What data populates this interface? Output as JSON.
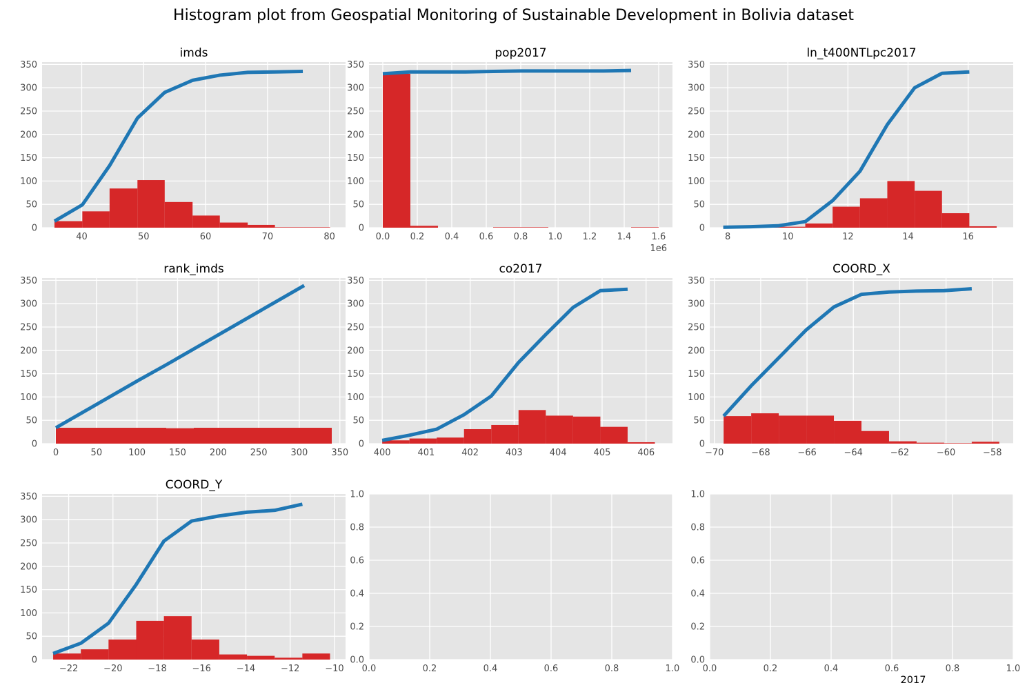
{
  "title": "Histogram plot from Geospatial Monitoring of Sustainable Development in Bolivia dataset",
  "colors": {
    "bar": "#d62728",
    "line": "#1f77b4",
    "panel": "#e5e5e5",
    "grid": "#ffffff",
    "tick_text": "#4d4d4d"
  },
  "chart_data": [
    {
      "type": "bar",
      "title": "imds",
      "grid": true,
      "xlim": [
        33.6,
        82.6
      ],
      "ylim": [
        0,
        355
      ],
      "xticks": [
        40,
        50,
        60,
        70,
        80
      ],
      "xtick_labels": [
        "40",
        "50",
        "60",
        "70",
        "80"
      ],
      "yticks": [
        0,
        50,
        100,
        150,
        200,
        250,
        300,
        350
      ],
      "ytick_labels": [
        "0",
        "50",
        "100",
        "150",
        "200",
        "250",
        "300",
        "350"
      ],
      "bin_edges": [
        35.6,
        40.1,
        44.5,
        49.0,
        53.4,
        57.9,
        62.3,
        66.8,
        71.2,
        75.7,
        80.1
      ],
      "counts": [
        14,
        35,
        84,
        102,
        55,
        26,
        11,
        6,
        1,
        1
      ],
      "cumulative": {
        "x": [
          35.6,
          40.1,
          44.5,
          49.0,
          53.4,
          57.9,
          62.3,
          66.8,
          71.2,
          75.7
        ],
        "y": [
          14,
          49,
          133,
          235,
          290,
          316,
          327,
          333,
          334,
          335
        ]
      }
    },
    {
      "type": "bar",
      "title": "pop2017",
      "grid": true,
      "xlim": [
        -0.08,
        1.68
      ],
      "ylim": [
        0,
        355
      ],
      "xticks": [
        0,
        0.2,
        0.4,
        0.6,
        0.8,
        1.0,
        1.2,
        1.4,
        1.6
      ],
      "xtick_labels": [
        "0.0",
        "0.2",
        "0.4",
        "0.6",
        "0.8",
        "1.0",
        "1.2",
        "1.4",
        "1.6"
      ],
      "x_offset_label": "1e6",
      "yticks": [
        0,
        50,
        100,
        150,
        200,
        250,
        300,
        350
      ],
      "ytick_labels": [
        "0",
        "50",
        "100",
        "150",
        "200",
        "250",
        "300",
        "350"
      ],
      "bin_edges": [
        0,
        0.16,
        0.32,
        0.48,
        0.64,
        0.8,
        0.96,
        1.12,
        1.28,
        1.44,
        1.6
      ],
      "counts": [
        330,
        4,
        0,
        0,
        1,
        1,
        0,
        0,
        0,
        1
      ],
      "cumulative": {
        "x": [
          0,
          0.16,
          0.32,
          0.48,
          0.64,
          0.8,
          0.96,
          1.12,
          1.28,
          1.44
        ],
        "y": [
          330,
          334,
          334,
          334,
          335,
          336,
          336,
          336,
          336,
          337
        ]
      }
    },
    {
      "type": "bar",
      "title": "ln_t400NTLpc2017",
      "grid": true,
      "xlim": [
        7.4,
        17.5
      ],
      "ylim": [
        0,
        355
      ],
      "xticks": [
        8,
        10,
        12,
        14,
        16
      ],
      "xtick_labels": [
        "8",
        "10",
        "12",
        "14",
        "16"
      ],
      "yticks": [
        0,
        50,
        100,
        150,
        200,
        250,
        300,
        350
      ],
      "ytick_labels": [
        "0",
        "50",
        "100",
        "150",
        "200",
        "250",
        "300",
        "350"
      ],
      "bin_edges": [
        7.85,
        8.76,
        9.67,
        10.58,
        11.49,
        12.4,
        13.31,
        14.22,
        15.13,
        16.04,
        16.95
      ],
      "counts": [
        1,
        1,
        2,
        9,
        45,
        63,
        100,
        79,
        31,
        3
      ],
      "cumulative": {
        "x": [
          7.85,
          8.76,
          9.67,
          10.58,
          11.49,
          12.4,
          13.31,
          14.22,
          15.13,
          16.04
        ],
        "y": [
          1,
          2,
          4,
          13,
          58,
          121,
          221,
          300,
          331,
          334
        ]
      }
    },
    {
      "type": "bar",
      "title": "rank_imds",
      "grid": true,
      "xlim": [
        -17,
        357
      ],
      "ylim": [
        0,
        355
      ],
      "xticks": [
        0,
        50,
        100,
        150,
        200,
        250,
        300,
        350
      ],
      "xtick_labels": [
        "0",
        "50",
        "100",
        "150",
        "200",
        "250",
        "300",
        "350"
      ],
      "yticks": [
        0,
        50,
        100,
        150,
        200,
        250,
        300,
        350
      ],
      "ytick_labels": [
        "0",
        "50",
        "100",
        "150",
        "200",
        "250",
        "300",
        "350"
      ],
      "bin_edges": [
        0,
        34,
        68,
        102,
        136,
        170,
        204,
        238,
        272,
        306,
        340
      ],
      "counts": [
        34,
        34,
        34,
        34,
        33,
        34,
        34,
        34,
        34,
        34
      ],
      "cumulative": {
        "x": [
          0,
          34,
          68,
          102,
          136,
          170,
          204,
          238,
          272,
          306
        ],
        "y": [
          34,
          68,
          102,
          136,
          169,
          203,
          237,
          271,
          305,
          339
        ]
      }
    },
    {
      "type": "bar",
      "title": "co2017",
      "grid": true,
      "xlim": [
        399.7,
        406.6
      ],
      "ylim": [
        0,
        355
      ],
      "xticks": [
        400,
        401,
        402,
        403,
        404,
        405,
        406
      ],
      "xtick_labels": [
        "400",
        "401",
        "402",
        "403",
        "404",
        "405",
        "406"
      ],
      "yticks": [
        0,
        50,
        100,
        150,
        200,
        250,
        300,
        350
      ],
      "ytick_labels": [
        "0",
        "50",
        "100",
        "150",
        "200",
        "250",
        "300",
        "350"
      ],
      "bin_edges": [
        400.0,
        400.62,
        401.24,
        401.86,
        402.48,
        403.1,
        403.72,
        404.34,
        404.96,
        405.58,
        406.2
      ],
      "counts": [
        7,
        11,
        13,
        31,
        40,
        72,
        60,
        58,
        36,
        3
      ],
      "cumulative": {
        "x": [
          400.0,
          400.62,
          401.24,
          401.86,
          402.48,
          403.1,
          403.72,
          404.34,
          404.96,
          405.58
        ],
        "y": [
          7,
          18,
          31,
          62,
          102,
          174,
          234,
          292,
          328,
          331
        ]
      }
    },
    {
      "type": "bar",
      "title": "COORD_X",
      "grid": true,
      "xlim": [
        -70.2,
        -57.1
      ],
      "ylim": [
        0,
        355
      ],
      "xticks": [
        -70,
        -68,
        -66,
        -64,
        -62,
        -60,
        -58
      ],
      "xtick_labels": [
        "−70",
        "−68",
        "−66",
        "−64",
        "−62",
        "−60",
        "−58"
      ],
      "yticks": [
        0,
        50,
        100,
        150,
        200,
        250,
        300,
        350
      ],
      "ytick_labels": [
        "0",
        "50",
        "100",
        "150",
        "200",
        "250",
        "300",
        "350"
      ],
      "bin_edges": [
        -69.6,
        -68.41,
        -67.22,
        -66.03,
        -64.84,
        -63.65,
        -62.46,
        -61.27,
        -60.08,
        -58.89,
        -57.7
      ],
      "counts": [
        59,
        65,
        60,
        60,
        49,
        27,
        5,
        2,
        1,
        4
      ],
      "cumulative": {
        "x": [
          -69.6,
          -68.41,
          -67.22,
          -66.03,
          -64.84,
          -63.65,
          -62.46,
          -61.27,
          -60.08,
          -58.89
        ],
        "y": [
          59,
          124,
          184,
          244,
          293,
          320,
          325,
          327,
          328,
          332
        ]
      }
    },
    {
      "type": "bar",
      "title": "COORD_Y",
      "grid": true,
      "xlim": [
        -23.2,
        -9.5
      ],
      "ylim": [
        0,
        355
      ],
      "xticks": [
        -22,
        -20,
        -18,
        -16,
        -14,
        -12,
        -10
      ],
      "xtick_labels": [
        "−22",
        "−20",
        "−18",
        "−16",
        "−14",
        "−12",
        "−10"
      ],
      "yticks": [
        0,
        50,
        100,
        150,
        200,
        250,
        300,
        350
      ],
      "ytick_labels": [
        "0",
        "50",
        "100",
        "150",
        "200",
        "250",
        "300",
        "350"
      ],
      "bin_edges": [
        -22.7,
        -21.45,
        -20.2,
        -18.95,
        -17.7,
        -16.45,
        -15.2,
        -13.95,
        -12.7,
        -11.45,
        -10.2
      ],
      "counts": [
        13,
        22,
        43,
        83,
        93,
        43,
        11,
        8,
        4,
        13
      ],
      "cumulative": {
        "x": [
          -22.7,
          -21.45,
          -20.2,
          -18.95,
          -17.7,
          -16.45,
          -15.2,
          -13.95,
          -12.7,
          -11.45
        ],
        "y": [
          13,
          35,
          78,
          161,
          254,
          297,
          308,
          316,
          320,
          333
        ]
      }
    },
    {
      "type": "bar",
      "title": "",
      "grid": true,
      "empty": true,
      "xlim": [
        0,
        1
      ],
      "ylim": [
        0,
        1
      ],
      "xticks": [
        0,
        0.2,
        0.4,
        0.6,
        0.8,
        1.0
      ],
      "xtick_labels": [
        "0.0",
        "0.2",
        "0.4",
        "0.6",
        "0.8",
        "1.0"
      ],
      "yticks": [
        0,
        0.2,
        0.4,
        0.6,
        0.8,
        1.0
      ],
      "ytick_labels": [
        "0.0",
        "0.2",
        "0.4",
        "0.6",
        "0.8",
        "1.0"
      ]
    },
    {
      "type": "bar",
      "title": "",
      "grid": true,
      "empty": true,
      "xlim": [
        0,
        1
      ],
      "ylim": [
        0,
        1
      ],
      "xticks": [
        0,
        0.2,
        0.4,
        0.6,
        0.8,
        1.0
      ],
      "xtick_labels": [
        "0.0",
        "0.2",
        "0.4",
        "0.6",
        "0.8",
        "1.0"
      ],
      "yticks": [
        0,
        0.2,
        0.4,
        0.6,
        0.8,
        1.0
      ],
      "ytick_labels": [
        "0.0",
        "0.2",
        "0.4",
        "0.6",
        "0.8",
        "1.0"
      ],
      "xlabel": "2017"
    }
  ]
}
